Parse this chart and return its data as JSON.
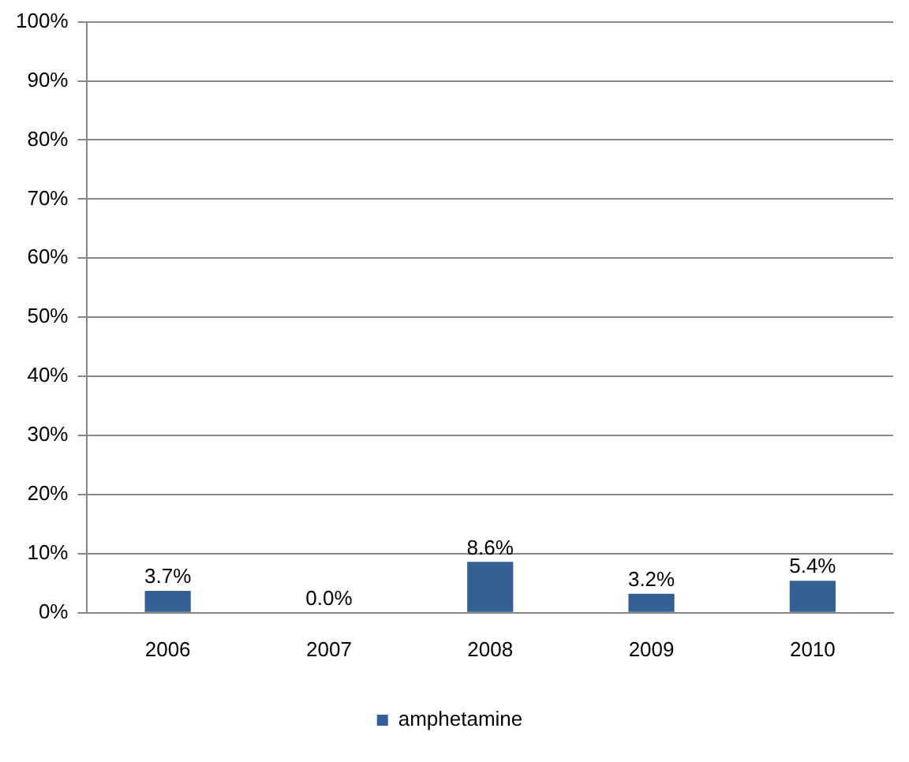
{
  "chart_data": {
    "type": "bar",
    "categories": [
      "2006",
      "2007",
      "2008",
      "2009",
      "2010"
    ],
    "series": [
      {
        "name": "amphetamine",
        "color": "#335f94",
        "values": [
          3.7,
          0.0,
          8.6,
          3.2,
          5.4
        ],
        "value_labels": [
          "3.7%",
          "0.0%",
          "8.6%",
          "3.2%",
          "5.4%"
        ]
      }
    ],
    "ylim": [
      0,
      100
    ],
    "yticks": [
      {
        "value": 0,
        "label": "0%"
      },
      {
        "value": 10,
        "label": "10%"
      },
      {
        "value": 20,
        "label": "20%"
      },
      {
        "value": 30,
        "label": "30%"
      },
      {
        "value": 40,
        "label": "40%"
      },
      {
        "value": 50,
        "label": "50%"
      },
      {
        "value": 60,
        "label": "60%"
      },
      {
        "value": 70,
        "label": "70%"
      },
      {
        "value": 80,
        "label": "80%"
      },
      {
        "value": 90,
        "label": "90%"
      },
      {
        "value": 100,
        "label": "100%"
      }
    ],
    "grid": "y",
    "legend": "bottom"
  }
}
